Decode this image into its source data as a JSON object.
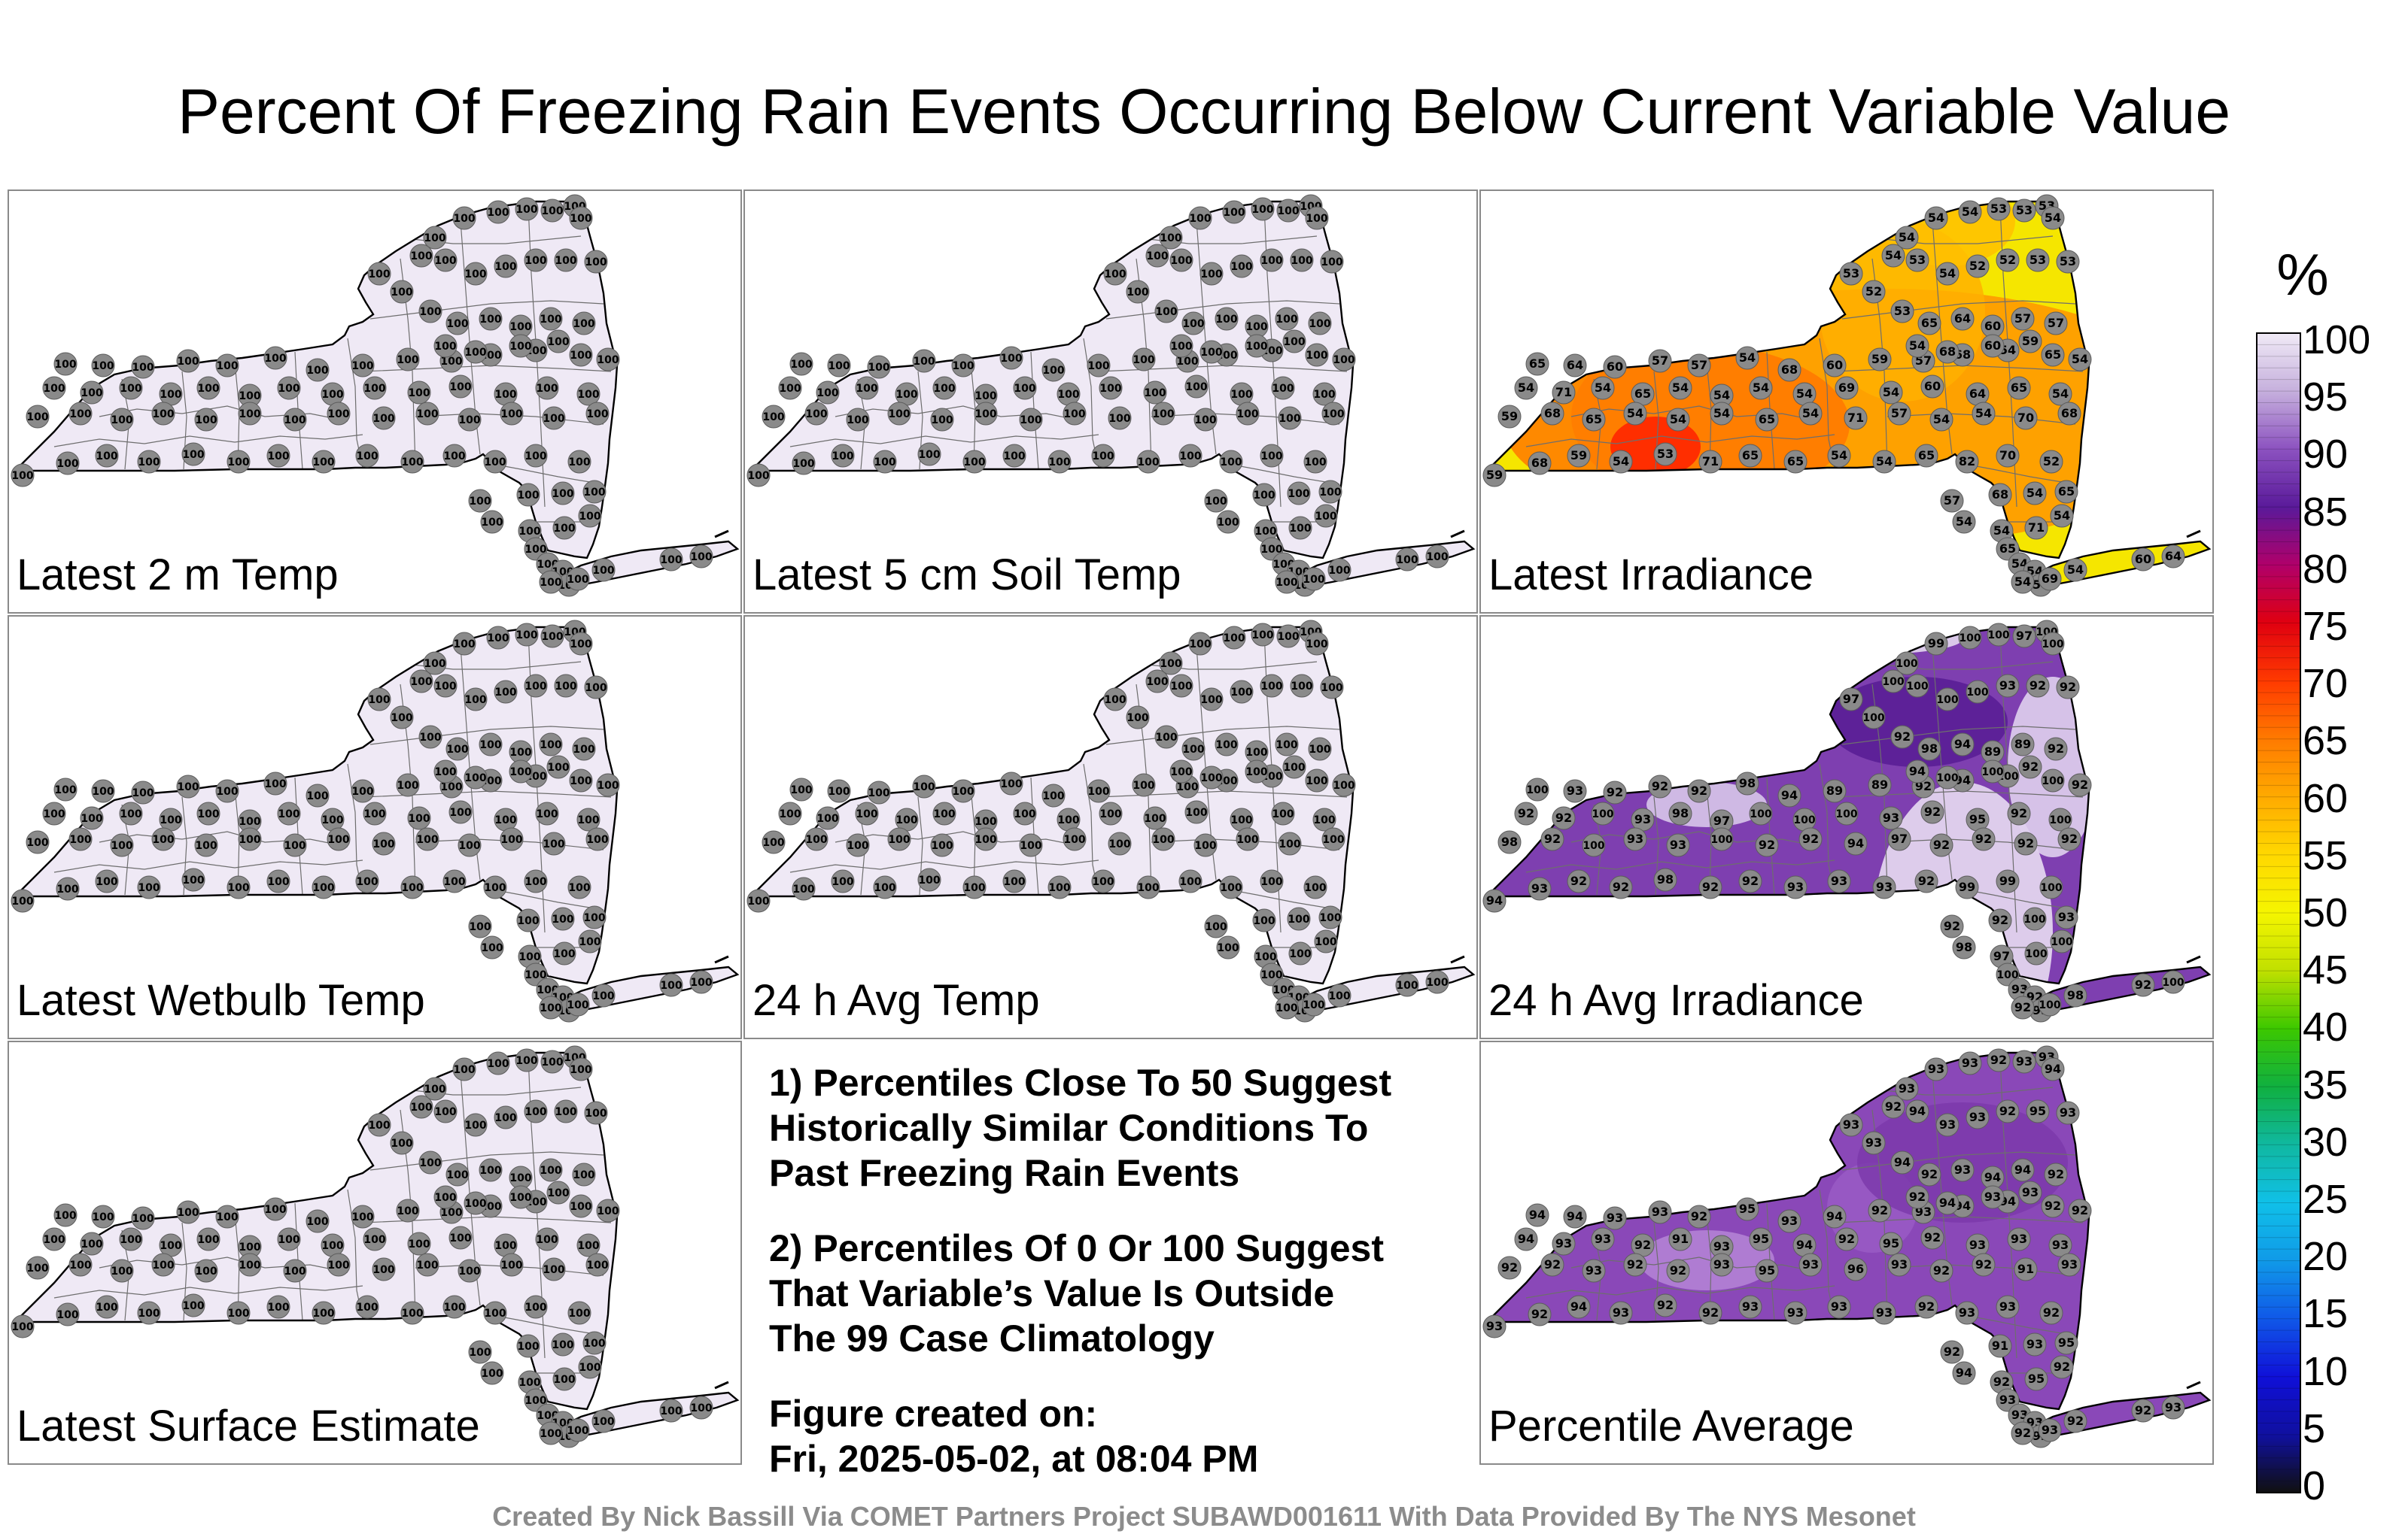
{
  "title": "Percent Of Freezing Rain Events Occurring Below Current Variable Value",
  "panels": [
    {
      "label": "Latest 2 m Temp",
      "fill": "uniform",
      "color": "#efe9f5",
      "values": [
        100
      ]
    },
    {
      "label": "Latest 5 cm Soil Temp",
      "fill": "uniform",
      "color": "#efe9f5",
      "values": [
        100
      ]
    },
    {
      "label": "Latest Irradiance",
      "fill": "irradiance",
      "color": "#f5e600",
      "values": [
        65,
        64,
        60,
        57,
        57,
        54,
        68,
        60,
        59,
        57,
        68,
        54,
        65,
        54,
        54,
        71,
        54,
        65,
        54,
        54,
        54,
        54,
        69,
        54,
        60,
        64,
        65,
        54,
        59,
        68,
        65,
        54,
        54,
        54,
        65,
        54,
        71,
        57,
        54,
        54,
        70,
        68,
        59,
        68,
        59,
        54,
        53,
        71,
        65,
        65,
        54,
        54,
        65,
        82,
        70,
        52,
        53,
        52,
        54,
        54,
        54,
        54,
        53,
        53,
        53,
        54,
        53,
        54,
        52,
        52,
        53,
        53,
        53
      ]
    },
    {
      "label": "Latest Wetbulb Temp",
      "fill": "uniform",
      "color": "#efe9f5",
      "values": [
        100
      ]
    },
    {
      "label": "24 h Avg Temp",
      "fill": "uniform",
      "color": "#efe9f5",
      "values": [
        100
      ]
    },
    {
      "label": "24 h Avg Irradiance",
      "fill": "avg-irr",
      "color": "#7e3fb0",
      "values": [
        100,
        93,
        92,
        92,
        92,
        98,
        94,
        89,
        89,
        92,
        94,
        100,
        100,
        92,
        92,
        92,
        100,
        93,
        98,
        97,
        100,
        100,
        100,
        93,
        92,
        95,
        92,
        100,
        98,
        92,
        100,
        93,
        93,
        100,
        92,
        92,
        94,
        97,
        92,
        92,
        92,
        92,
        94,
        93,
        92,
        92,
        98,
        92,
        92,
        93,
        93,
        93,
        92,
        99,
        99,
        100,
        97,
        100,
        100,
        100,
        99,
        100,
        100,
        97,
        100,
        100,
        100,
        100
      ]
    },
    null,
    {
      "label": "Percentile Average",
      "fill": "pct-avg",
      "color": "#8a48b8",
      "values": [
        94,
        94,
        93,
        93,
        92,
        95,
        93,
        94,
        92,
        93,
        94,
        94,
        92,
        92,
        94,
        93,
        93,
        92,
        91,
        93,
        95,
        94,
        92,
        95,
        92,
        93,
        93,
        93,
        92,
        92,
        93,
        92,
        92,
        93,
        95,
        93,
        96,
        93,
        92,
        92,
        91,
        93,
        93,
        92,
        94,
        93,
        92,
        92,
        93,
        93,
        93,
        93,
        92,
        93,
        93,
        92,
        93,
        93,
        92,
        93,
        93,
        93,
        92,
        93,
        93
      ]
    }
  ],
  "notes": [
    "1) Percentiles Close To 50 Suggest\nHistorically Similar Conditions To\nPast Freezing Rain Events",
    "2) Percentiles Of 0 Or 100 Suggest\nThat Variable’s Value Is Outside\nThe 99 Case Climatology",
    "Figure created on:\nFri, 2025-05-02, at 08:04 PM"
  ],
  "colorbar": {
    "unit": "%",
    "ticks": [
      "100",
      "95",
      "90",
      "85",
      "80",
      "75",
      "70",
      "65",
      "60",
      "55",
      "50",
      "45",
      "40",
      "35",
      "30",
      "25",
      "20",
      "15",
      "10",
      "5",
      "0"
    ],
    "stops": [
      "#f0eaf6",
      "#c6b0dd",
      "#8c52c0",
      "#5a1a9a",
      "#b0006a",
      "#e00010",
      "#ff3a00",
      "#ff7a00",
      "#ffaa00",
      "#ffd800",
      "#f5f500",
      "#c0e000",
      "#3cc800",
      "#10b040",
      "#10b8a0",
      "#10c0e8",
      "#109ae8",
      "#1058e8",
      "#1010d8",
      "#1010a0",
      "#101010"
    ]
  },
  "footer": "Created By Nick Bassill Via COMET Partners Project SUBAWD001611 With Data Provided By The NYS Mesonet"
}
